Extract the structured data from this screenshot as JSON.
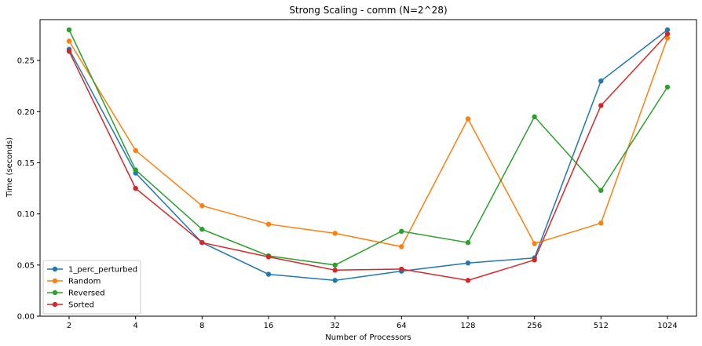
{
  "chart_data": {
    "type": "line",
    "title": "Strong Scaling - comm (N=2^28)",
    "xlabel": "Number of Processors",
    "ylabel": "Time (seconds)",
    "categories": [
      "2",
      "4",
      "8",
      "16",
      "32",
      "64",
      "128",
      "256",
      "512",
      "1024"
    ],
    "yticks": [
      "0.00",
      "0.05",
      "0.10",
      "0.15",
      "0.20",
      "0.25"
    ],
    "ylim": [
      0,
      0.29
    ],
    "grid": false,
    "legend_position": "lower-left",
    "series": [
      {
        "name": "1_perc_perturbed",
        "color": "#1f77b4",
        "values": [
          0.261,
          0.14,
          0.072,
          0.041,
          0.035,
          0.044,
          0.052,
          0.057,
          0.23,
          0.28
        ]
      },
      {
        "name": "Random",
        "color": "#ff7f0e",
        "values": [
          0.269,
          0.162,
          0.108,
          0.09,
          0.081,
          0.068,
          0.193,
          0.071,
          0.091,
          0.272
        ]
      },
      {
        "name": "Reversed",
        "color": "#2ca02c",
        "values": [
          0.28,
          0.143,
          0.085,
          0.059,
          0.05,
          0.083,
          0.072,
          0.195,
          0.123,
          0.224
        ]
      },
      {
        "name": "Sorted",
        "color": "#d62728",
        "values": [
          0.259,
          0.125,
          0.072,
          0.058,
          0.045,
          0.046,
          0.035,
          0.055,
          0.206,
          0.276
        ]
      }
    ]
  }
}
